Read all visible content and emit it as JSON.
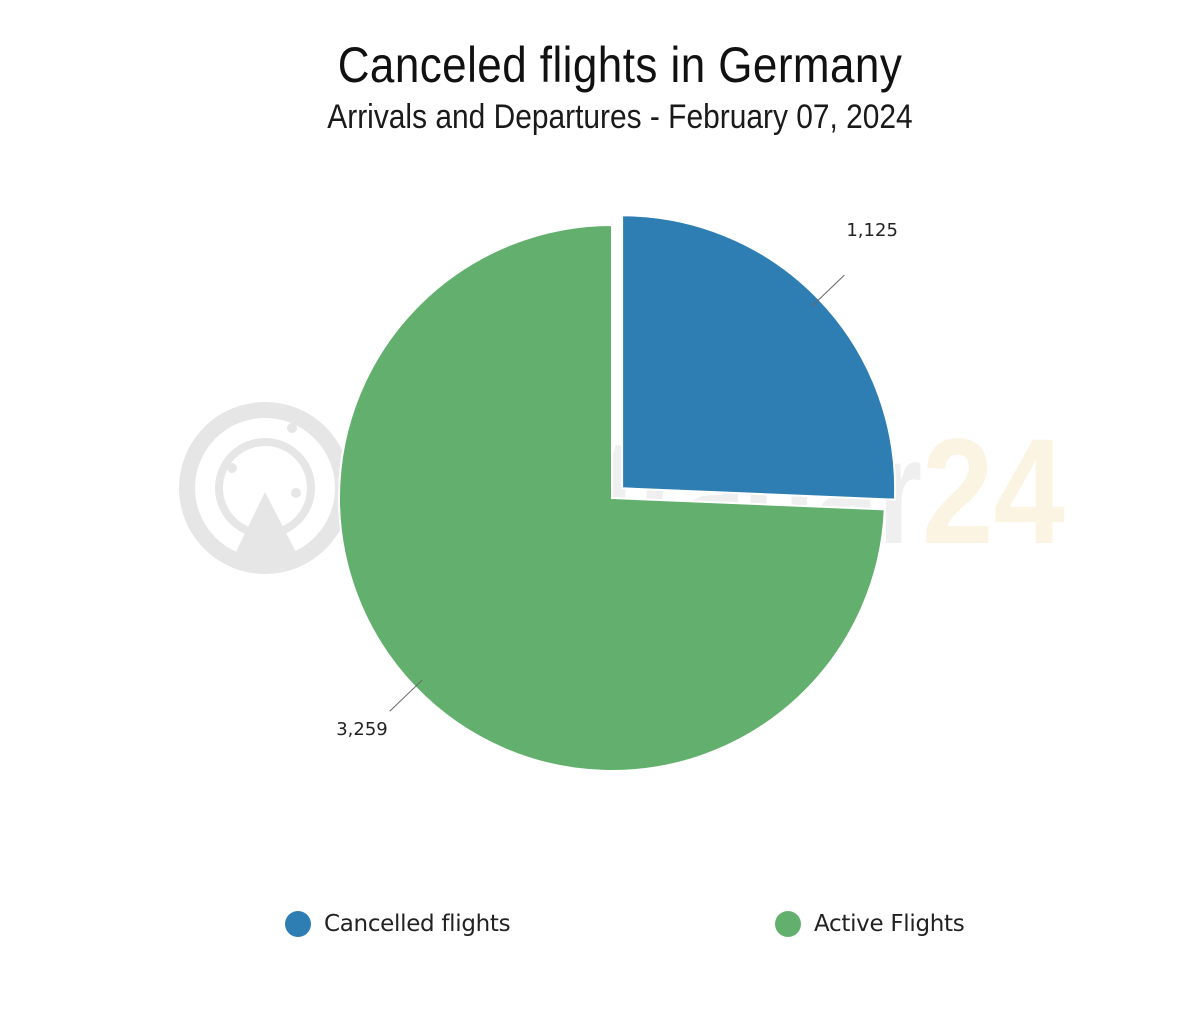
{
  "chart_data": {
    "type": "pie",
    "title": "Canceled flights in Germany",
    "subtitle": "Arrivals and Departures - February 07, 2024",
    "slices": [
      {
        "name": "Cancelled flights",
        "value": 1125,
        "label": "1,125",
        "color": "#2e7eb3",
        "exploded": true
      },
      {
        "name": "Active Flights",
        "value": 3259,
        "label": "3,259",
        "color": "#63b06e",
        "exploded": false
      }
    ],
    "legend": {
      "position": "bottom",
      "items": [
        "Cancelled flights",
        "Active Flights"
      ]
    }
  },
  "watermark": {
    "text": "flightradar24",
    "logo": "flightradar24-radar-icon"
  }
}
